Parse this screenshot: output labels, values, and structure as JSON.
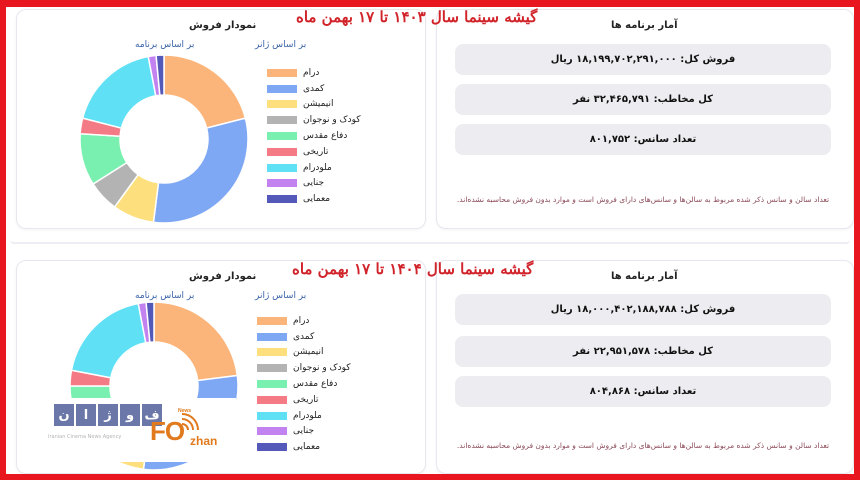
{
  "sections": [
    {
      "headline": "گیشه سینما  سال ۱۴۰۳ تا ۱۷ بهمن ماه",
      "chart_card": {
        "title": "نمودار فروش",
        "tabs": {
          "genre": "بر اساس ژانر",
          "program": "بر اساس برنامه"
        }
      },
      "stats_card": {
        "title": "آمار برنامه ها",
        "total_sales": "فروش کل: ۱۸,۱۹۹,۷۰۲,۲۹۱,۰۰۰ ریال",
        "total_audience": "کل مخاطب: ۳۲,۴۶۵,۷۹۱ نفر",
        "session_count": "تعداد سانس: ۸۰۱,۷۵۲",
        "note": "تعداد سالن و سانس ذکر شده مربوط به سالن‌ها و سانس‌های دارای فروش است و موارد بدون فروش محاسبه نشده‌اند."
      }
    },
    {
      "headline": "گیشه سینما  سال ۱۴۰۴ تا ۱۷ بهمن ماه",
      "chart_card": {
        "title": "نمودار فروش",
        "tabs": {
          "genre": "بر اساس ژانر",
          "program": "بر اساس برنامه"
        }
      },
      "stats_card": {
        "title": "آمار برنامه ها",
        "total_sales": "فروش کل: ۱۸,۰۰۰,۴۰۲,۱۸۸,۷۸۸ ریال",
        "total_audience": "کل مخاطب: ۲۲,۹۵۱,۵۷۸ نفر",
        "session_count": "تعداد سانس: ۸۰۴,۸۶۸",
        "note": "تعداد سالن و سانس ذکر شده مربوط به سالن‌ها و سانس‌های دارای فروش است و موارد بدون فروش محاسبه نشده‌اند."
      }
    }
  ],
  "legend": [
    {
      "label": "درام",
      "color": "#fbb57a"
    },
    {
      "label": "کمدی",
      "color": "#7fa8f4"
    },
    {
      "label": "انیمیشن",
      "color": "#fddf7e"
    },
    {
      "label": "کودک و نوجوان",
      "color": "#b3b3b3"
    },
    {
      "label": "دفاع مقدس",
      "color": "#79f0b0"
    },
    {
      "label": "تاریخی",
      "color": "#f47a86"
    },
    {
      "label": "ملودرام",
      "color": "#5fe0f5"
    },
    {
      "label": "جنایی",
      "color": "#c283f0"
    },
    {
      "label": "معمایی",
      "color": "#5458b8"
    }
  ],
  "watermark": {
    "letters": [
      "ن",
      "ا",
      "ژ",
      "و",
      "ف"
    ],
    "subtitle": "Iranian Cinema News Agency",
    "logo_main": "FO",
    "logo_sub": "zhan",
    "logo_news": "News"
  },
  "colors": {
    "frame": "#e8161f",
    "headline": "#d1232a",
    "tab": "#3a63a8",
    "stat_bg": "#ededf1",
    "note": "#8b4a57"
  },
  "chart_data": [
    {
      "type": "pie",
      "title": "نمودار فروش - بر اساس ژانر (۱۴۰۳)",
      "categories": [
        "درام",
        "کمدی",
        "انیمیشن",
        "کودک و نوجوان",
        "دفاع مقدس",
        "تاریخی",
        "ملودرام",
        "جنایی",
        "معمایی"
      ],
      "values": [
        21,
        31,
        8,
        6,
        10,
        3,
        18,
        1.5,
        1.5
      ],
      "unit": "approx % of sales (estimated)",
      "donut": true,
      "legend_position": "right"
    },
    {
      "type": "pie",
      "title": "نمودار فروش - بر اساس ژانر (۱۴۰۴)",
      "categories": [
        "درام",
        "کمدی",
        "انیمیشن",
        "کودک و نوجوان",
        "دفاع مقدس",
        "تاریخی",
        "ملودرام",
        "جنایی",
        "معمایی"
      ],
      "values": [
        23,
        29,
        8,
        6,
        9,
        3,
        19,
        1.5,
        1.5
      ],
      "unit": "approx % of sales (estimated)",
      "donut": true,
      "legend_position": "right"
    }
  ]
}
